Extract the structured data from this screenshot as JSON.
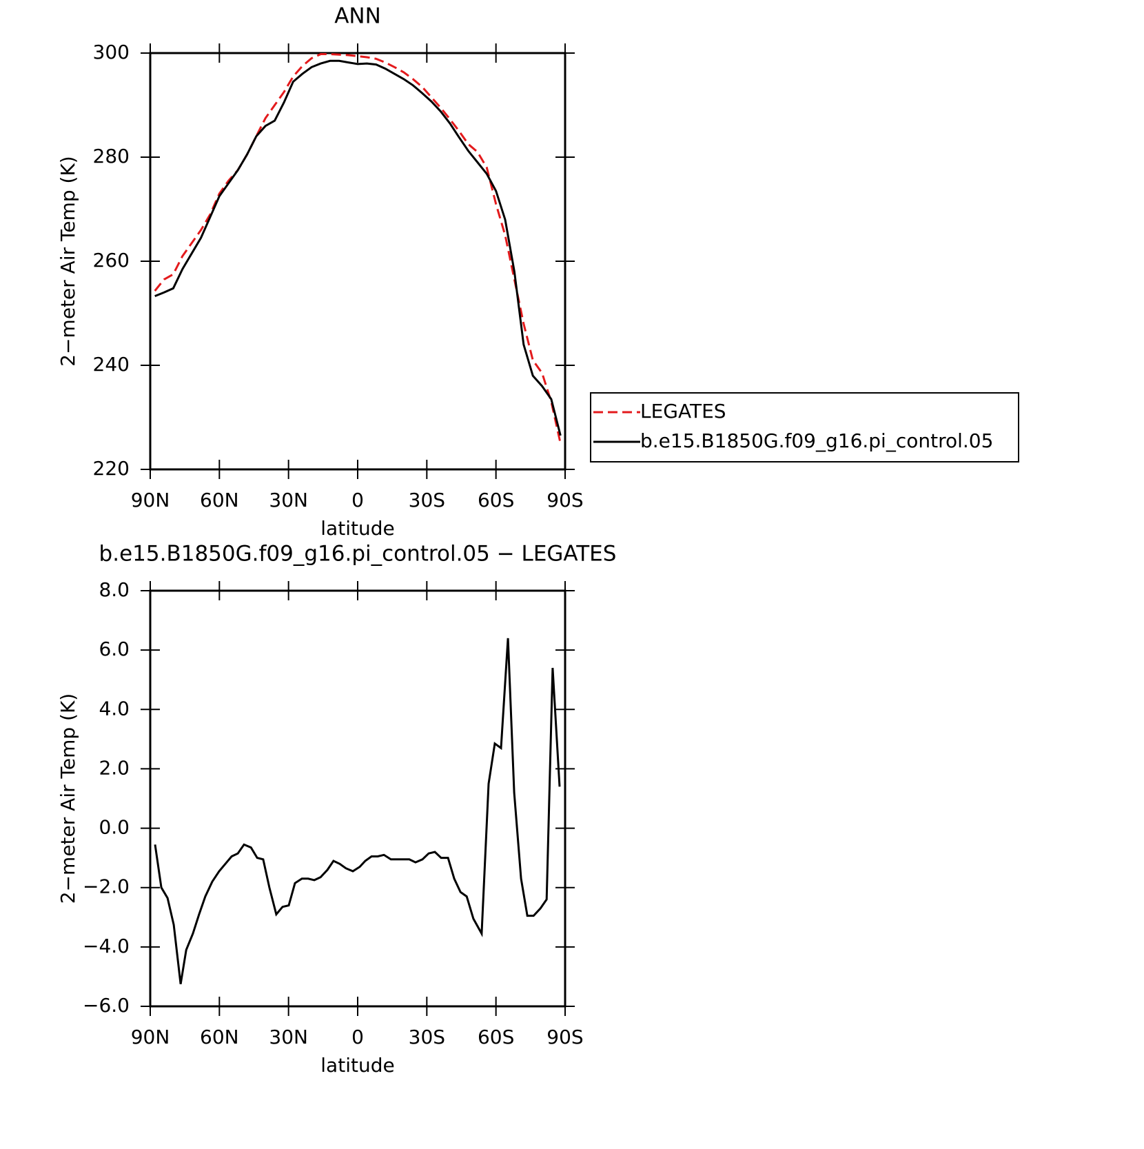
{
  "chart_data": [
    {
      "type": "line",
      "title": "ANN",
      "xlabel": "latitude",
      "ylabel": "2−meter Air Temp (K)",
      "x": [
        88,
        84,
        80,
        76,
        72,
        68,
        64,
        60,
        56,
        52,
        48,
        44,
        40,
        36,
        32,
        28,
        24,
        20,
        16,
        12,
        8,
        4,
        0,
        -4,
        -8,
        -12,
        -16,
        -20,
        -24,
        -28,
        -32,
        -36,
        -40,
        -44,
        -48,
        -52,
        -56,
        -60,
        -64,
        -68,
        -72,
        -76,
        -80,
        -84,
        -88
      ],
      "series": [
        {
          "name": "LEGATES",
          "color": "#e31a1c",
          "style": "dashed",
          "values": [
            254.3,
            256.5,
            257.5,
            261,
            263.5,
            266,
            269,
            273,
            275.5,
            277.5,
            280.5,
            284,
            287.5,
            290,
            292.5,
            295.5,
            297.5,
            299,
            299.8,
            299.8,
            299.7,
            299.6,
            299.4,
            299.2,
            298.9,
            298.2,
            297.3,
            296.3,
            295,
            293.5,
            291.5,
            289.5,
            287.3,
            285,
            282.5,
            281,
            278,
            271,
            265,
            256.5,
            248,
            241,
            238.5,
            233,
            225
          ]
        },
        {
          "name": "b.e15.B1850G.f09_g16.pi_control.05",
          "color": "#000000",
          "style": "solid",
          "values": [
            253.3,
            254,
            254.8,
            258.5,
            261.5,
            264.5,
            268.5,
            272.5,
            275,
            277.5,
            280.5,
            284,
            286,
            287,
            290.5,
            294.5,
            296,
            297.3,
            298,
            298.5,
            298.5,
            298.2,
            297.9,
            298,
            297.8,
            297,
            296,
            295,
            293.8,
            292.3,
            290.7,
            288.8,
            286.5,
            283.8,
            281.2,
            279,
            276.8,
            273.5,
            268,
            258,
            244,
            238,
            236,
            233.5,
            226.5
          ]
        }
      ],
      "xlim": [
        90,
        -90
      ],
      "xticks": [
        {
          "value": 90,
          "label": "90N"
        },
        {
          "value": 60,
          "label": "60N"
        },
        {
          "value": 30,
          "label": "30N"
        },
        0,
        {
          "value": -30,
          "label": "30S"
        },
        {
          "value": -60,
          "label": "60S"
        },
        {
          "value": -90,
          "label": "90S"
        }
      ],
      "ylim": [
        220,
        300
      ],
      "yticks": [
        220,
        240,
        260,
        280,
        300
      ],
      "legend": "right"
    },
    {
      "type": "line",
      "title": "b.e15.B1850G.f09_g16.pi_control.05 − LEGATES",
      "xlabel": "latitude",
      "ylabel": "2−meter Air Temp (K)",
      "x": [
        87.9,
        85.2,
        82.5,
        79.8,
        76.8,
        74.4,
        71.5,
        68.8,
        66.1,
        63.1,
        60.1,
        57.4,
        54.7,
        52.0,
        49.3,
        46.3,
        43.6,
        41.0,
        38.3,
        35.3,
        32.6,
        29.9,
        27.2,
        24.2,
        21.5,
        18.8,
        16.1,
        13.1,
        10.5,
        7.8,
        5.1,
        2.1,
        -0.9,
        -3.3,
        -6.0,
        -8.7,
        -11.4,
        -14.4,
        -17.1,
        -19.7,
        -22.4,
        -25.1,
        -28.1,
        -30.8,
        -33.5,
        -36.2,
        -39.2,
        -41.9,
        -44.6,
        -47.3,
        -50.2,
        -53.8,
        -56.8,
        -59.5,
        -62.2,
        -65.2,
        -67.9,
        -70.9,
        -73.6,
        -76.3,
        -79.3,
        -82.0,
        -84.6,
        -87.6
      ],
      "series": [
        {
          "color": "#000000",
          "style": "solid",
          "values": [
            -0.55,
            -2.0,
            -2.35,
            -3.25,
            -5.25,
            -4.1,
            -3.55,
            -2.9,
            -2.3,
            -1.8,
            -1.45,
            -1.2,
            -0.95,
            -0.85,
            -0.55,
            -0.65,
            -1.0,
            -1.05,
            -2.0,
            -2.9,
            -2.65,
            -2.6,
            -1.85,
            -1.7,
            -1.7,
            -1.75,
            -1.65,
            -1.4,
            -1.1,
            -1.2,
            -1.35,
            -1.45,
            -1.3,
            -1.1,
            -0.95,
            -0.95,
            -0.9,
            -1.05,
            -1.05,
            -1.05,
            -1.05,
            -1.15,
            -1.05,
            -0.85,
            -0.8,
            -1.0,
            -1.0,
            -1.7,
            -2.15,
            -2.3,
            -3.05,
            -3.55,
            1.5,
            2.85,
            2.7,
            6.4,
            1.2,
            -1.7,
            -2.95,
            -2.95,
            -2.7,
            -2.4,
            5.4,
            1.4
          ]
        }
      ],
      "xlim": [
        90,
        -90
      ],
      "xticks": [
        {
          "value": 90,
          "label": "90N"
        },
        {
          "value": 60,
          "label": "60N"
        },
        {
          "value": 30,
          "label": "30N"
        },
        0,
        {
          "value": -30,
          "label": "30S"
        },
        {
          "value": -60,
          "label": "60S"
        },
        {
          "value": -90,
          "label": "90S"
        }
      ],
      "ylim": [
        -6,
        8
      ],
      "yticks": [
        {
          "value": -6,
          "label": "−6.0"
        },
        {
          "value": -4,
          "label": "−4.0"
        },
        {
          "value": -2,
          "label": "−2.0"
        },
        {
          "value": 0,
          "label": "0.0"
        },
        {
          "value": 2,
          "label": "2.0"
        },
        {
          "value": 4,
          "label": "4.0"
        },
        {
          "value": 6,
          "label": "6.0"
        },
        {
          "value": 8,
          "label": "8.0"
        }
      ]
    }
  ]
}
